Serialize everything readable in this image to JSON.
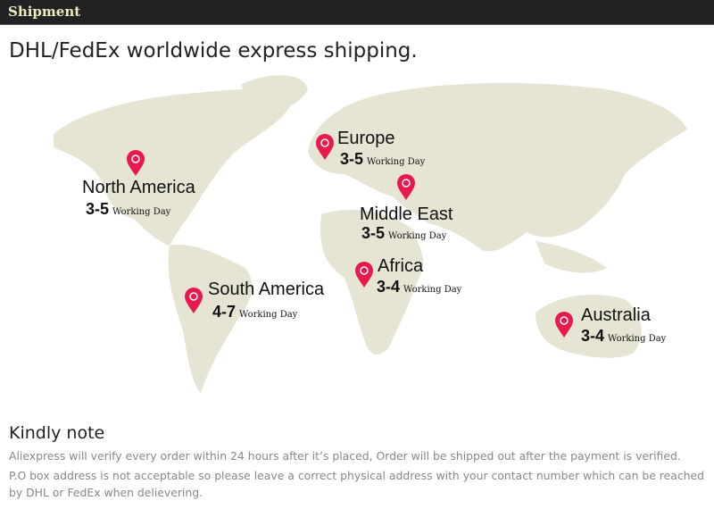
{
  "header": {
    "title": "Shipment"
  },
  "headline": "DHL/FedEx worldwide express shipping.",
  "colors": {
    "header_bg": "#222222",
    "header_text": "#efeac0",
    "land": "#e6e4d3",
    "pin": "#e8194f"
  },
  "regions": [
    {
      "name": "North America",
      "days": "3-5",
      "unit": "Working Day",
      "icon": "map-pin-icon"
    },
    {
      "name": "Europe",
      "days": "3-5",
      "unit": "Working Day",
      "icon": "map-pin-icon"
    },
    {
      "name": "Middle East",
      "days": "3-5",
      "unit": "Working Day",
      "icon": "map-pin-icon"
    },
    {
      "name": "Africa",
      "days": "3-4",
      "unit": "Working Day",
      "icon": "map-pin-icon"
    },
    {
      "name": "South America",
      "days": "4-7",
      "unit": "Working Day",
      "icon": "map-pin-icon"
    },
    {
      "name": "Australia",
      "days": "3-4",
      "unit": "Working Day",
      "icon": "map-pin-icon"
    }
  ],
  "note": {
    "title": "Kindly note",
    "lines": [
      "Aliexpress will verify every order within 24 hours after it’s placed, Order will be shipped out after the payment is verified.",
      "P.O box address is not acceptable so please leave a correct physical address with your contact number which can be reached",
      "by DHL or FedEx when delievering."
    ]
  }
}
